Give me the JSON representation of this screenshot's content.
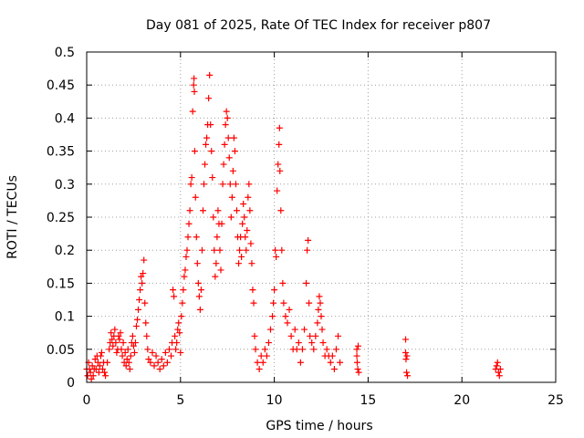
{
  "chart_data": {
    "type": "scatter",
    "title": "Day 081 of 2025, Rate Of TEC Index for receiver p807",
    "xlabel": "GPS time / hours",
    "ylabel": "ROTI / TECUs",
    "xlim": [
      0,
      25
    ],
    "ylim": [
      0,
      0.5
    ],
    "xticks": [
      0,
      5,
      10,
      15,
      20,
      25
    ],
    "xtick_labels": [
      "0",
      "5",
      "10",
      "15",
      "20",
      "25"
    ],
    "yticks": [
      0,
      0.05,
      0.1,
      0.15,
      0.2,
      0.25,
      0.3,
      0.35,
      0.4,
      0.45,
      0.5
    ],
    "ytick_labels": [
      "0",
      "0.05",
      "0.1",
      "0.15",
      "0.2",
      "0.25",
      "0.3",
      "0.35",
      "0.4",
      "0.45",
      "0.5"
    ],
    "grid": true,
    "marker": "plus",
    "color": "#ff0000",
    "series": [
      {
        "name": "ROTI",
        "points": [
          [
            0.0,
            0.02
          ],
          [
            0.05,
            0.01
          ],
          [
            0.1,
            0.03
          ],
          [
            0.15,
            0.02
          ],
          [
            0.2,
            0.015
          ],
          [
            0.25,
            0.005
          ],
          [
            0.3,
            0.025
          ],
          [
            0.35,
            0.01
          ],
          [
            0.4,
            0.02
          ],
          [
            0.45,
            0.035
          ],
          [
            0.5,
            0.02
          ],
          [
            0.55,
            0.04
          ],
          [
            0.6,
            0.03
          ],
          [
            0.65,
            0.015
          ],
          [
            0.7,
            0.025
          ],
          [
            0.75,
            0.04
          ],
          [
            0.8,
            0.045
          ],
          [
            0.85,
            0.02
          ],
          [
            0.9,
            0.03
          ],
          [
            0.95,
            0.015
          ],
          [
            1.0,
            0.01
          ],
          [
            1.1,
            0.03
          ],
          [
            1.2,
            0.05
          ],
          [
            1.25,
            0.06
          ],
          [
            1.3,
            0.075
          ],
          [
            1.35,
            0.065
          ],
          [
            1.4,
            0.055
          ],
          [
            1.45,
            0.07
          ],
          [
            1.5,
            0.08
          ],
          [
            1.55,
            0.06
          ],
          [
            1.6,
            0.045
          ],
          [
            1.65,
            0.05
          ],
          [
            1.7,
            0.07
          ],
          [
            1.75,
            0.065
          ],
          [
            1.8,
            0.075
          ],
          [
            1.85,
            0.05
          ],
          [
            1.9,
            0.04
          ],
          [
            1.95,
            0.06
          ],
          [
            2.0,
            0.03
          ],
          [
            2.05,
            0.045
          ],
          [
            2.1,
            0.025
          ],
          [
            2.15,
            0.035
          ],
          [
            2.2,
            0.05
          ],
          [
            2.25,
            0.03
          ],
          [
            2.3,
            0.02
          ],
          [
            2.35,
            0.04
          ],
          [
            2.4,
            0.06
          ],
          [
            2.45,
            0.07
          ],
          [
            2.5,
            0.055
          ],
          [
            2.55,
            0.045
          ],
          [
            2.6,
            0.06
          ],
          [
            2.65,
            0.085
          ],
          [
            2.7,
            0.095
          ],
          [
            2.75,
            0.11
          ],
          [
            2.8,
            0.125
          ],
          [
            2.85,
            0.14
          ],
          [
            2.9,
            0.16
          ],
          [
            2.95,
            0.15
          ],
          [
            3.0,
            0.165
          ],
          [
            3.05,
            0.185
          ],
          [
            3.1,
            0.12
          ],
          [
            3.15,
            0.09
          ],
          [
            3.2,
            0.07
          ],
          [
            3.25,
            0.05
          ],
          [
            3.3,
            0.035
          ],
          [
            3.4,
            0.03
          ],
          [
            3.5,
            0.045
          ],
          [
            3.6,
            0.025
          ],
          [
            3.7,
            0.04
          ],
          [
            3.8,
            0.03
          ],
          [
            3.9,
            0.02
          ],
          [
            4.0,
            0.035
          ],
          [
            4.1,
            0.025
          ],
          [
            4.2,
            0.045
          ],
          [
            4.3,
            0.03
          ],
          [
            4.4,
            0.05
          ],
          [
            4.5,
            0.04
          ],
          [
            4.55,
            0.06
          ],
          [
            4.6,
            0.14
          ],
          [
            4.65,
            0.13
          ],
          [
            4.7,
            0.07
          ],
          [
            4.75,
            0.05
          ],
          [
            4.8,
            0.06
          ],
          [
            4.85,
            0.08
          ],
          [
            4.9,
            0.09
          ],
          [
            4.95,
            0.075
          ],
          [
            5.0,
            0.045
          ],
          [
            5.05,
            0.1
          ],
          [
            5.1,
            0.12
          ],
          [
            5.15,
            0.14
          ],
          [
            5.2,
            0.16
          ],
          [
            5.25,
            0.17
          ],
          [
            5.3,
            0.19
          ],
          [
            5.35,
            0.2
          ],
          [
            5.4,
            0.22
          ],
          [
            5.45,
            0.24
          ],
          [
            5.5,
            0.26
          ],
          [
            5.55,
            0.3
          ],
          [
            5.6,
            0.31
          ],
          [
            5.65,
            0.41
          ],
          [
            5.7,
            0.45
          ],
          [
            5.72,
            0.46
          ],
          [
            5.74,
            0.44
          ],
          [
            5.76,
            0.35
          ],
          [
            5.8,
            0.28
          ],
          [
            5.85,
            0.22
          ],
          [
            5.9,
            0.18
          ],
          [
            5.95,
            0.15
          ],
          [
            6.0,
            0.13
          ],
          [
            6.05,
            0.11
          ],
          [
            6.1,
            0.14
          ],
          [
            6.15,
            0.2
          ],
          [
            6.2,
            0.26
          ],
          [
            6.25,
            0.3
          ],
          [
            6.3,
            0.33
          ],
          [
            6.35,
            0.36
          ],
          [
            6.4,
            0.37
          ],
          [
            6.45,
            0.39
          ],
          [
            6.5,
            0.43
          ],
          [
            6.55,
            0.465
          ],
          [
            6.6,
            0.39
          ],
          [
            6.65,
            0.35
          ],
          [
            6.7,
            0.31
          ],
          [
            6.75,
            0.25
          ],
          [
            6.8,
            0.2
          ],
          [
            6.85,
            0.16
          ],
          [
            6.9,
            0.18
          ],
          [
            6.95,
            0.22
          ],
          [
            7.0,
            0.26
          ],
          [
            7.05,
            0.24
          ],
          [
            7.1,
            0.2
          ],
          [
            7.15,
            0.17
          ],
          [
            7.2,
            0.24
          ],
          [
            7.25,
            0.3
          ],
          [
            7.3,
            0.33
          ],
          [
            7.35,
            0.36
          ],
          [
            7.4,
            0.39
          ],
          [
            7.45,
            0.41
          ],
          [
            7.5,
            0.4
          ],
          [
            7.55,
            0.37
          ],
          [
            7.6,
            0.34
          ],
          [
            7.65,
            0.3
          ],
          [
            7.7,
            0.25
          ],
          [
            7.75,
            0.28
          ],
          [
            7.8,
            0.32
          ],
          [
            7.85,
            0.37
          ],
          [
            7.9,
            0.35
          ],
          [
            7.95,
            0.3
          ],
          [
            8.0,
            0.26
          ],
          [
            8.05,
            0.22
          ],
          [
            8.1,
            0.18
          ],
          [
            8.15,
            0.2
          ],
          [
            8.2,
            0.22
          ],
          [
            8.25,
            0.19
          ],
          [
            8.3,
            0.24
          ],
          [
            8.35,
            0.27
          ],
          [
            8.4,
            0.25
          ],
          [
            8.45,
            0.22
          ],
          [
            8.5,
            0.2
          ],
          [
            8.55,
            0.23
          ],
          [
            8.6,
            0.28
          ],
          [
            8.65,
            0.3
          ],
          [
            8.7,
            0.26
          ],
          [
            8.75,
            0.21
          ],
          [
            8.8,
            0.18
          ],
          [
            8.85,
            0.14
          ],
          [
            8.9,
            0.12
          ],
          [
            8.95,
            0.07
          ],
          [
            9.0,
            0.05
          ],
          [
            9.1,
            0.03
          ],
          [
            9.2,
            0.02
          ],
          [
            9.3,
            0.04
          ],
          [
            9.4,
            0.03
          ],
          [
            9.5,
            0.05
          ],
          [
            9.6,
            0.04
          ],
          [
            9.7,
            0.06
          ],
          [
            9.8,
            0.08
          ],
          [
            9.9,
            0.1
          ],
          [
            9.95,
            0.12
          ],
          [
            10.0,
            0.14
          ],
          [
            10.05,
            0.2
          ],
          [
            10.1,
            0.19
          ],
          [
            10.15,
            0.29
          ],
          [
            10.2,
            0.33
          ],
          [
            10.25,
            0.36
          ],
          [
            10.28,
            0.385
          ],
          [
            10.3,
            0.32
          ],
          [
            10.35,
            0.26
          ],
          [
            10.4,
            0.2
          ],
          [
            10.45,
            0.15
          ],
          [
            10.5,
            0.12
          ],
          [
            10.6,
            0.1
          ],
          [
            10.7,
            0.09
          ],
          [
            10.8,
            0.11
          ],
          [
            10.9,
            0.07
          ],
          [
            11.0,
            0.05
          ],
          [
            11.1,
            0.08
          ],
          [
            11.2,
            0.05
          ],
          [
            11.3,
            0.06
          ],
          [
            11.4,
            0.03
          ],
          [
            11.5,
            0.05
          ],
          [
            11.6,
            0.08
          ],
          [
            11.7,
            0.15
          ],
          [
            11.75,
            0.2
          ],
          [
            11.8,
            0.215
          ],
          [
            11.85,
            0.12
          ],
          [
            11.9,
            0.07
          ],
          [
            12.0,
            0.06
          ],
          [
            12.1,
            0.05
          ],
          [
            12.2,
            0.07
          ],
          [
            12.3,
            0.09
          ],
          [
            12.35,
            0.11
          ],
          [
            12.4,
            0.13
          ],
          [
            12.45,
            0.12
          ],
          [
            12.5,
            0.1
          ],
          [
            12.55,
            0.08
          ],
          [
            12.6,
            0.06
          ],
          [
            12.7,
            0.04
          ],
          [
            12.8,
            0.05
          ],
          [
            12.9,
            0.04
          ],
          [
            13.0,
            0.03
          ],
          [
            13.1,
            0.04
          ],
          [
            13.2,
            0.02
          ],
          [
            13.3,
            0.05
          ],
          [
            13.4,
            0.07
          ],
          [
            13.5,
            0.03
          ],
          [
            14.4,
            0.05
          ],
          [
            14.4,
            0.04
          ],
          [
            14.42,
            0.03
          ],
          [
            14.45,
            0.02
          ],
          [
            14.47,
            0.055
          ],
          [
            14.5,
            0.015
          ],
          [
            17.0,
            0.065
          ],
          [
            17.0,
            0.045
          ],
          [
            17.02,
            0.035
          ],
          [
            17.05,
            0.015
          ],
          [
            17.07,
            0.04
          ],
          [
            17.1,
            0.01
          ],
          [
            21.8,
            0.02
          ],
          [
            21.85,
            0.025
          ],
          [
            21.9,
            0.03
          ],
          [
            21.95,
            0.015
          ],
          [
            22.0,
            0.01
          ],
          [
            22.05,
            0.02
          ]
        ]
      }
    ]
  }
}
